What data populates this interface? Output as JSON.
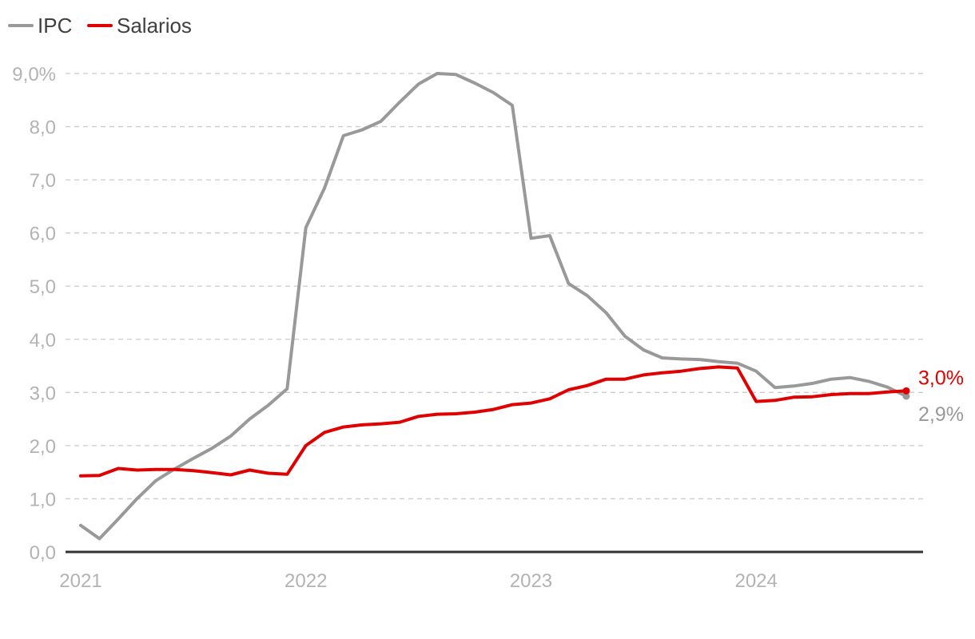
{
  "chart_data": {
    "type": "line",
    "title": "",
    "xlabel": "",
    "ylabel": "",
    "x_tick_labels": [
      "2021",
      "2022",
      "2023",
      "2024"
    ],
    "y_tick_labels": [
      "0,0",
      "1,0",
      "2,0",
      "3,0",
      "4,0",
      "5,0",
      "6,0",
      "7,0",
      "8,0",
      "9,0%"
    ],
    "y_ticks": [
      0,
      1,
      2,
      3,
      4,
      5,
      6,
      7,
      8,
      9
    ],
    "ylim": [
      0,
      9
    ],
    "x_range": [
      0,
      45
    ],
    "grid": "horizontal dashed",
    "legend_position": "top-left",
    "series": [
      {
        "name": "IPC",
        "color": "#999999",
        "values": [
          0.5,
          0.25,
          0.62,
          1.0,
          1.34,
          1.56,
          1.76,
          1.95,
          2.18,
          2.5,
          2.76,
          3.07,
          6.1,
          6.85,
          7.83,
          7.94,
          8.1,
          8.46,
          8.8,
          9.0,
          8.98,
          8.82,
          8.64,
          8.4,
          5.9,
          5.95,
          5.05,
          4.82,
          4.5,
          4.06,
          3.8,
          3.65,
          3.63,
          3.62,
          3.58,
          3.55,
          3.4,
          3.09,
          3.12,
          3.17,
          3.25,
          3.28,
          3.21,
          3.1,
          2.93
        ],
        "end_label": "2,9%"
      },
      {
        "name": "Salarios",
        "color": "#e00000",
        "values": [
          1.43,
          1.44,
          1.57,
          1.54,
          1.55,
          1.55,
          1.53,
          1.49,
          1.45,
          1.54,
          1.48,
          1.46,
          2.0,
          2.25,
          2.35,
          2.39,
          2.41,
          2.44,
          2.55,
          2.59,
          2.6,
          2.63,
          2.68,
          2.77,
          2.8,
          2.88,
          3.05,
          3.13,
          3.25,
          3.25,
          3.33,
          3.37,
          3.4,
          3.45,
          3.48,
          3.46,
          2.83,
          2.85,
          2.91,
          2.92,
          2.96,
          2.98,
          2.98,
          3.01,
          3.03
        ],
        "end_label": "3,0%"
      }
    ]
  }
}
